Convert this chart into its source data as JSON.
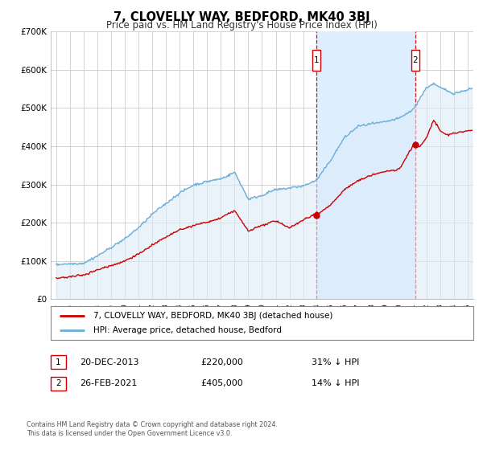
{
  "title": "7, CLOVELLY WAY, BEDFORD, MK40 3BJ",
  "subtitle": "Price paid vs. HM Land Registry's House Price Index (HPI)",
  "ylim": [
    0,
    700000
  ],
  "xlim": [
    1994.6,
    2025.4
  ],
  "yticks": [
    0,
    100000,
    200000,
    300000,
    400000,
    500000,
    600000,
    700000
  ],
  "ytick_labels": [
    "£0",
    "£100K",
    "£200K",
    "£300K",
    "£400K",
    "£500K",
    "£600K",
    "£700K"
  ],
  "xticks": [
    1995,
    1996,
    1997,
    1998,
    1999,
    2000,
    2001,
    2002,
    2003,
    2004,
    2005,
    2006,
    2007,
    2008,
    2009,
    2010,
    2011,
    2012,
    2013,
    2014,
    2015,
    2016,
    2017,
    2018,
    2019,
    2020,
    2021,
    2022,
    2023,
    2024,
    2025
  ],
  "red_line_color": "#cc0000",
  "blue_line_color": "#6baed6",
  "blue_fill_color": "#deebf7",
  "span_color": "#ddeeff",
  "vline_color": "#cc0000",
  "marker_color": "#cc0000",
  "legend_label_red": "7, CLOVELLY WAY, BEDFORD, MK40 3BJ (detached house)",
  "legend_label_blue": "HPI: Average price, detached house, Bedford",
  "sale1_x": 2013.97,
  "sale1_y": 220000,
  "sale2_x": 2021.16,
  "sale2_y": 405000,
  "annotation1": [
    "1",
    "20-DEC-2013",
    "£220,000",
    "31% ↓ HPI"
  ],
  "annotation2": [
    "2",
    "26-FEB-2021",
    "£405,000",
    "14% ↓ HPI"
  ],
  "footer1": "Contains HM Land Registry data © Crown copyright and database right 2024.",
  "footer2": "This data is licensed under the Open Government Licence v3.0.",
  "background_color": "#ffffff",
  "plot_bg_color": "#ffffff",
  "grid_color": "#cccccc",
  "title_fontsize": 10.5,
  "subtitle_fontsize": 8.5
}
